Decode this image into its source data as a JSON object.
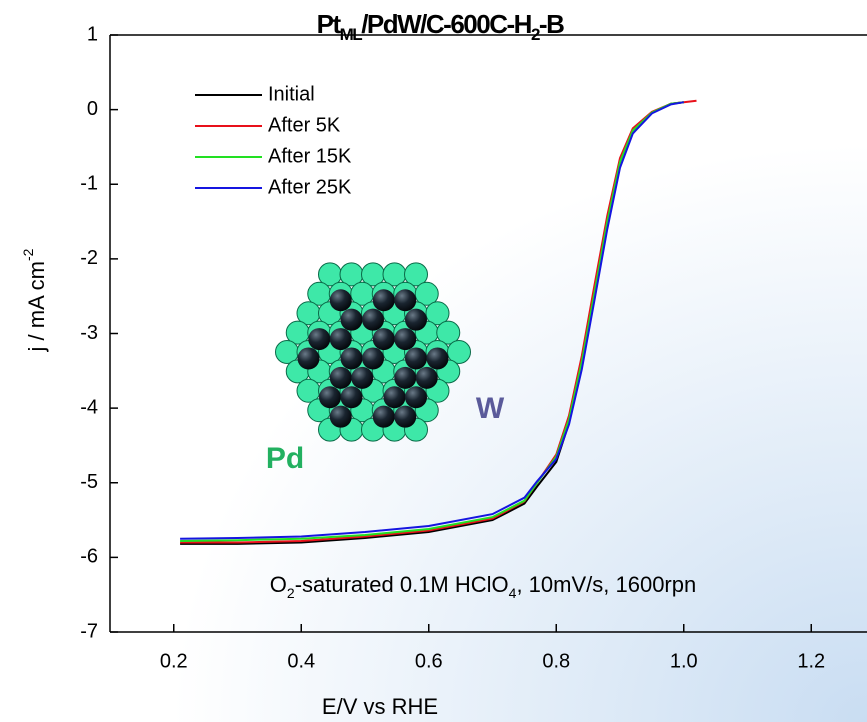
{
  "chart_data": {
    "type": "line",
    "title": [
      "Pt",
      "ML",
      "/PdW/C-600C-H",
      "2",
      "-B"
    ],
    "annotation": [
      "O",
      "2",
      "-saturated  0.1M HClO",
      "4",
      ", 10mV/s, 1600rpn"
    ],
    "xlabel": "E/V vs RHE",
    "ylabel": [
      "j / mA cm",
      "-2"
    ],
    "inset_labels": [
      "Pd",
      "W"
    ],
    "x": [
      0.21,
      0.3,
      0.4,
      0.5,
      0.6,
      0.7,
      0.75,
      0.77,
      0.8,
      0.82,
      0.84,
      0.86,
      0.88,
      0.9,
      0.92,
      0.95,
      0.98,
      1.0,
      1.02
    ],
    "series": [
      {
        "name": "Initial",
        "color": "#000000",
        "values": [
          -5.82,
          -5.82,
          -5.8,
          -5.74,
          -5.66,
          -5.5,
          -5.28,
          -5.05,
          -4.72,
          -4.2,
          -3.4,
          -2.45,
          -1.5,
          -0.7,
          -0.28,
          -0.04,
          0.08,
          0.1,
          null
        ]
      },
      {
        "name": "After 5K",
        "color": "#e8101a",
        "values": [
          -5.8,
          -5.8,
          -5.78,
          -5.72,
          -5.64,
          -5.48,
          -5.25,
          -5.0,
          -4.62,
          -4.1,
          -3.3,
          -2.35,
          -1.42,
          -0.65,
          -0.25,
          -0.03,
          0.08,
          0.1,
          0.12
        ]
      },
      {
        "name": "After 15K",
        "color": "#22e022",
        "values": [
          -5.78,
          -5.77,
          -5.75,
          -5.7,
          -5.62,
          -5.46,
          -5.24,
          -5.0,
          -4.65,
          -4.15,
          -3.38,
          -2.45,
          -1.5,
          -0.7,
          -0.28,
          -0.04,
          0.08,
          0.1,
          null
        ]
      },
      {
        "name": "After 25K",
        "color": "#1515e0",
        "values": [
          -5.75,
          -5.74,
          -5.72,
          -5.66,
          -5.58,
          -5.42,
          -5.2,
          -4.98,
          -4.68,
          -4.22,
          -3.48,
          -2.55,
          -1.6,
          -0.78,
          -0.32,
          -0.05,
          0.07,
          0.1,
          null
        ]
      }
    ],
    "xlim": [
      0.1,
      1.29
    ],
    "ylim": [
      -7,
      1
    ],
    "xticks": [
      0.2,
      0.4,
      0.6,
      0.8,
      {
        "value": 1,
        "label": "1.0"
      },
      1.2
    ],
    "yticks": [
      -7,
      -6,
      -5,
      -4,
      -3,
      -2,
      -1,
      0,
      1
    ],
    "legend": "upper left",
    "grid": false
  }
}
